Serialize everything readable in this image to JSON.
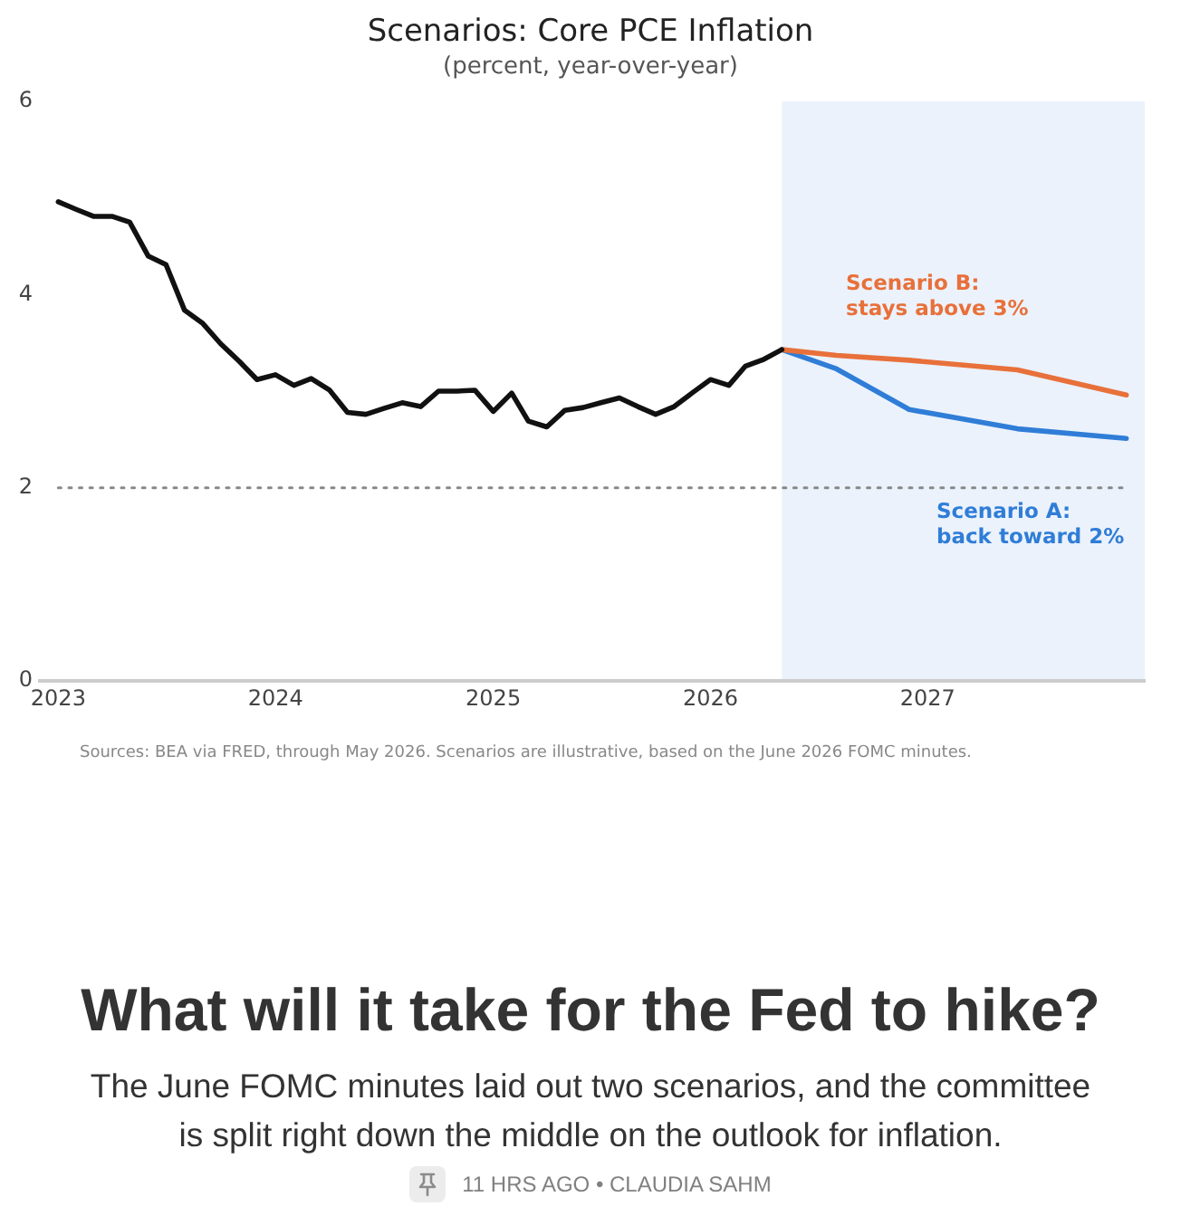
{
  "chart_data": {
    "type": "line",
    "title": "Scenarios: Core PCE Inflation",
    "subtitle": "(percent, year-over-year)",
    "xlim": [
      "2022-12",
      "2028-01"
    ],
    "xticks": [
      "2023",
      "2024",
      "2025",
      "2026",
      "2027"
    ],
    "ylim": [
      0,
      6
    ],
    "yticks": [
      0,
      2,
      4,
      6
    ],
    "series": [
      {
        "color": "#111111",
        "x": [
          "2023-01",
          "2023-02",
          "2023-03",
          "2023-04",
          "2023-05",
          "2023-06",
          "2023-07",
          "2023-08",
          "2023-09",
          "2023-10",
          "2023-11",
          "2023-12",
          "2024-01",
          "2024-02",
          "2024-03",
          "2024-04",
          "2024-05",
          "2024-06",
          "2024-07",
          "2024-08",
          "2024-09",
          "2024-10",
          "2024-11",
          "2024-12",
          "2025-01",
          "2025-02",
          "2025-03",
          "2025-04",
          "2025-05",
          "2025-06",
          "2025-07",
          "2025-08",
          "2025-09",
          "2025-10",
          "2025-11",
          "2025-12",
          "2026-01",
          "2026-02",
          "2026-03",
          "2026-04",
          "2026-05"
        ],
        "values": [
          4.96,
          4.88,
          4.81,
          4.81,
          4.75,
          4.4,
          4.31,
          3.84,
          3.7,
          3.49,
          3.31,
          3.12,
          3.17,
          3.06,
          3.13,
          3.01,
          2.78,
          2.76,
          2.82,
          2.88,
          2.84,
          3.0,
          3.0,
          3.01,
          2.79,
          2.98,
          2.69,
          2.63,
          2.8,
          2.83,
          2.88,
          2.93,
          2.84,
          2.76,
          2.84,
          2.98,
          3.12,
          3.06,
          3.26,
          3.33,
          3.43
        ]
      },
      {
        "name": "Scenario B: stays above 3%",
        "color": "#e8703a",
        "x": [
          "2026-05",
          "2026-08",
          "2026-12",
          "2027-06",
          "2027-12"
        ],
        "values": [
          3.43,
          3.37,
          3.32,
          3.22,
          2.96
        ]
      },
      {
        "name": "Scenario A: back toward 2%",
        "color": "#2f7dd7",
        "x": [
          "2026-05",
          "2026-08",
          "2026-12",
          "2027-06",
          "2027-12"
        ],
        "values": [
          3.43,
          3.23,
          2.81,
          2.61,
          2.51
        ]
      }
    ],
    "ref_lines": [
      {
        "axis": "y",
        "value": 2,
        "color": "#888888",
        "line_style": "dotted"
      }
    ],
    "bands": [
      {
        "axis": "x",
        "from": "2026-05",
        "to": "2028-01",
        "color": "#ebf2fc"
      }
    ],
    "annotations": [
      "Sources: BEA via FRED, through May 2026. Scenarios are illustrative, based on the June 2026 FOMC minutes.",
      "What will it take for the Fed to hike?",
      "The June FOMC minutes laid out two scenarios, and the committee is split right down the middle on the outlook for inflation.",
      "11 HRS AGO • CLAUDIA SAHM"
    ]
  }
}
